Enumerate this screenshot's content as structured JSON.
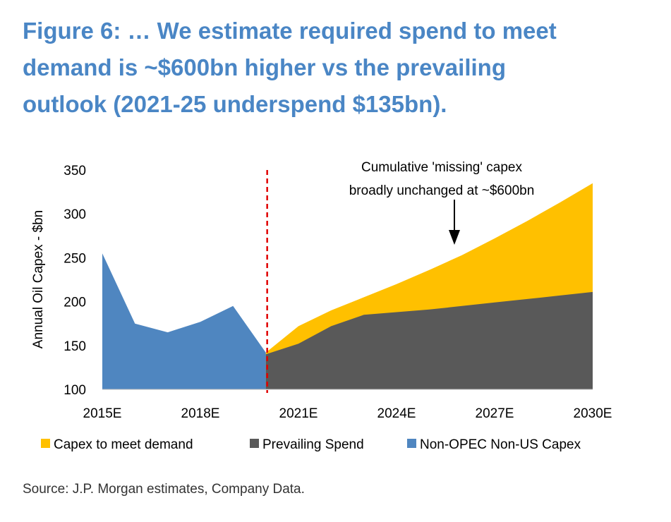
{
  "title_lines": [
    "Figure 6: … We estimate required spend to meet",
    "demand is ~$600bn higher vs the prevailing",
    "outlook (2021-25 underspend $135bn)."
  ],
  "source": "Source: J.P. Morgan estimates, Company Data.",
  "colors": {
    "title": "#4A86C5",
    "capex_to_meet_demand": "#FFC000",
    "prevailing_spend": "#595959",
    "non_opec_non_us_capex": "#4F86C0",
    "divider": "#E00000"
  },
  "chart_data": {
    "type": "area",
    "ylabel": "Annual Oil Capex - $bn",
    "ylim": [
      100,
      350
    ],
    "yticks": [
      100,
      150,
      200,
      250,
      300,
      350
    ],
    "x": [
      "2015E",
      "2016E",
      "2017E",
      "2018E",
      "2019E",
      "2020E",
      "2021E",
      "2022E",
      "2023E",
      "2024E",
      "2025E",
      "2026E",
      "2027E",
      "2028E",
      "2029E",
      "2030E"
    ],
    "xtick_labels": [
      "2015E",
      "2018E",
      "2021E",
      "2024E",
      "2027E",
      "2030E"
    ],
    "divider_at": "2020E",
    "annotation": [
      "Cumulative 'missing' capex",
      "broadly unchanged at ~$600bn"
    ],
    "legend_position": "bottom",
    "series": [
      {
        "name": "Capex to meet demand",
        "color": "#FFC000",
        "x": [
          "2020E",
          "2021E",
          "2022E",
          "2023E",
          "2024E",
          "2025E",
          "2026E",
          "2027E",
          "2028E",
          "2029E",
          "2030E"
        ],
        "values": [
          142,
          172,
          190,
          205,
          220,
          236,
          253,
          272,
          292,
          313,
          335
        ]
      },
      {
        "name": "Prevailing Spend",
        "color": "#595959",
        "x": [
          "2020E",
          "2021E",
          "2022E",
          "2023E",
          "2024E",
          "2025E",
          "2026E",
          "2027E",
          "2028E",
          "2029E",
          "2030E"
        ],
        "values": [
          140,
          152,
          172,
          185,
          188,
          191,
          195,
          199,
          203,
          207,
          211
        ]
      },
      {
        "name": "Non-OPEC Non-US Capex",
        "color": "#4F86C0",
        "x": [
          "2015E",
          "2016E",
          "2017E",
          "2018E",
          "2019E",
          "2020E"
        ],
        "values": [
          255,
          175,
          165,
          177,
          195,
          142
        ]
      }
    ]
  }
}
